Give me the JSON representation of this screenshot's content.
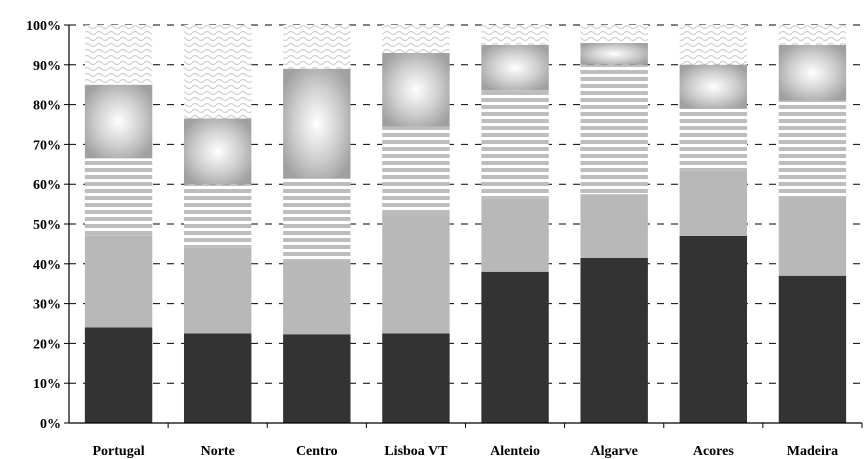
{
  "chart_data": {
    "type": "bar",
    "stacked": true,
    "categories": [
      "Portugal",
      "Norte",
      "Centro",
      "Lisboa VT",
      "Alenteio",
      "Algarve",
      "Acores",
      "Madeira"
    ],
    "series": [
      {
        "values": [
          24,
          22.5,
          22.3,
          22.5,
          38,
          41.5,
          47,
          37
        ],
        "pattern": "solid-dark",
        "color": "#333333"
      },
      {
        "values": [
          23.2,
          21.5,
          18.5,
          30,
          18.5,
          16,
          16.5,
          20
        ],
        "pattern": "solid-light",
        "color": "#b8b8b8"
      },
      {
        "values": [
          19.3,
          16,
          20.7,
          22,
          27,
          32.5,
          15.5,
          24
        ],
        "pattern": "horizontal-stripes",
        "color": "#bdbdbd"
      },
      {
        "values": [
          18.5,
          16.5,
          27.5,
          18.5,
          11.5,
          5.5,
          11,
          14
        ],
        "pattern": "radial-box",
        "color": "#a0a0a0"
      },
      {
        "values": [
          15,
          23.5,
          11,
          7,
          5,
          4.5,
          10,
          5
        ],
        "pattern": "wave",
        "color": "#d6d6d6"
      }
    ],
    "ylim": [
      0,
      100
    ],
    "yticks": [
      "0%",
      "10%",
      "20%",
      "30%",
      "40%",
      "50%",
      "60%",
      "70%",
      "80%",
      "90%",
      "100%"
    ],
    "grid": "dashed-horizontal",
    "legend": "none"
  }
}
